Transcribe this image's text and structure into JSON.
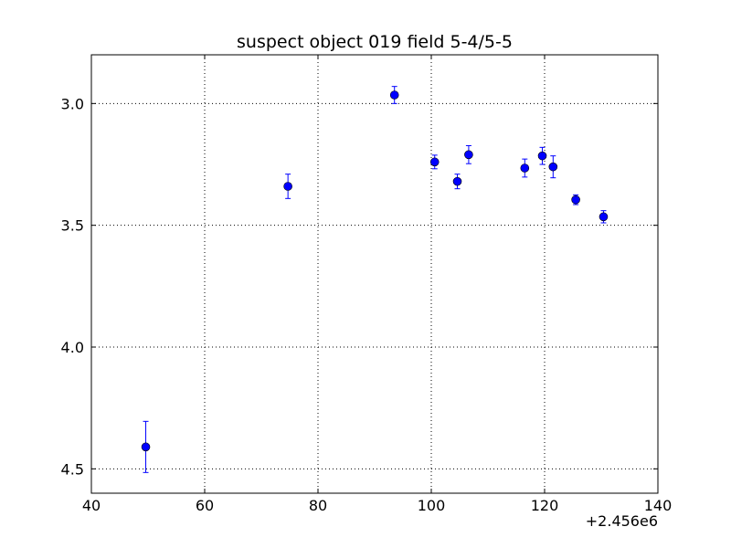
{
  "chart_data": {
    "type": "scatter",
    "title": "suspect object 019 field 5-4/5-5",
    "xlabel": "",
    "ylabel": "",
    "x_offset_label": "+2.456e6",
    "xlim": [
      40,
      140
    ],
    "ylim": [
      4.6,
      2.8
    ],
    "y_inverted": true,
    "grid": true,
    "x_ticks": [
      40,
      60,
      80,
      100,
      120,
      140
    ],
    "x_tick_labels": [
      "40",
      "60",
      "80",
      "100",
      "120",
      "140"
    ],
    "y_ticks": [
      3.0,
      3.5,
      4.0,
      4.5
    ],
    "y_tick_labels": [
      "3.0",
      "3.5",
      "4.0",
      "4.5"
    ],
    "marker_color": "#0000ff",
    "series": [
      {
        "points": [
          {
            "x": 49.6,
            "y": 4.41,
            "err": 0.105
          },
          {
            "x": 74.7,
            "y": 3.34,
            "err": 0.05
          },
          {
            "x": 93.5,
            "y": 2.965,
            "err": 0.035
          },
          {
            "x": 100.6,
            "y": 3.24,
            "err": 0.028
          },
          {
            "x": 104.6,
            "y": 3.32,
            "err": 0.03
          },
          {
            "x": 106.6,
            "y": 3.21,
            "err": 0.037
          },
          {
            "x": 116.5,
            "y": 3.265,
            "err": 0.037
          },
          {
            "x": 119.6,
            "y": 3.215,
            "err": 0.035
          },
          {
            "x": 121.5,
            "y": 3.26,
            "err": 0.045
          },
          {
            "x": 125.5,
            "y": 3.395,
            "err": 0.02
          },
          {
            "x": 130.4,
            "y": 3.465,
            "err": 0.025
          }
        ]
      }
    ]
  }
}
